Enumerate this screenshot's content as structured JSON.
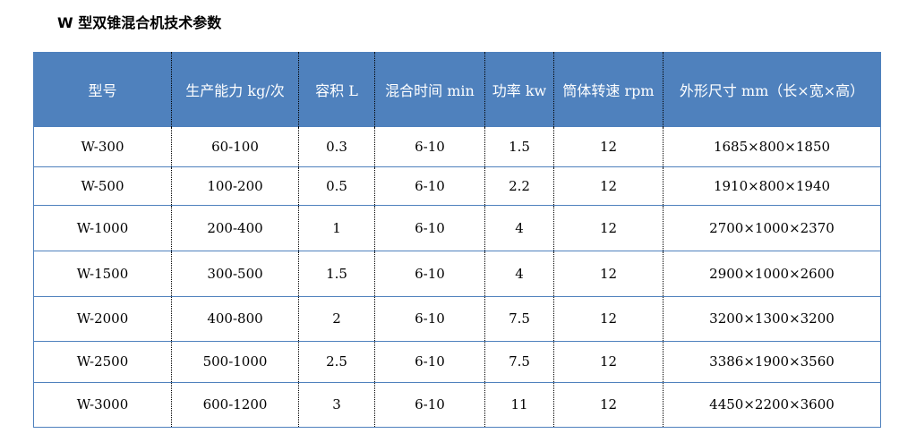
{
  "title": "W 型双锥混合机技术参数",
  "table": {
    "headers": [
      "型号",
      "生产能力 kg/次",
      "容积 L",
      "混合时间 min",
      "功率 kw",
      "筒体转速 rpm",
      "外形尺寸 mm（长×宽×高）"
    ],
    "rows": [
      [
        "W-300",
        "60-100",
        "0.3",
        "6-10",
        "1.5",
        "12",
        "1685×800×1850"
      ],
      [
        "W-500",
        "100-200",
        "0.5",
        "6-10",
        "2.2",
        "12",
        "1910×800×1940"
      ],
      [
        "W-1000",
        "200-400",
        "1",
        "6-10",
        "4",
        "12",
        "2700×1000×2370"
      ],
      [
        "W-1500",
        "300-500",
        "1.5",
        "6-10",
        "4",
        "12",
        "2900×1000×2600"
      ],
      [
        "W-2000",
        "400-800",
        "2",
        "6-10",
        "7.5",
        "12",
        "3200×1300×3200"
      ],
      [
        "W-2500",
        "500-1000",
        "2.5",
        "6-10",
        "7.5",
        "12",
        "3386×1900×3560"
      ],
      [
        "W-3000",
        "600-1200",
        "3",
        "6-10",
        "11",
        "12",
        "4450×2200×3600"
      ]
    ]
  },
  "colors": {
    "header_bg": "#4f81bd",
    "header_text": "#ffffff"
  }
}
